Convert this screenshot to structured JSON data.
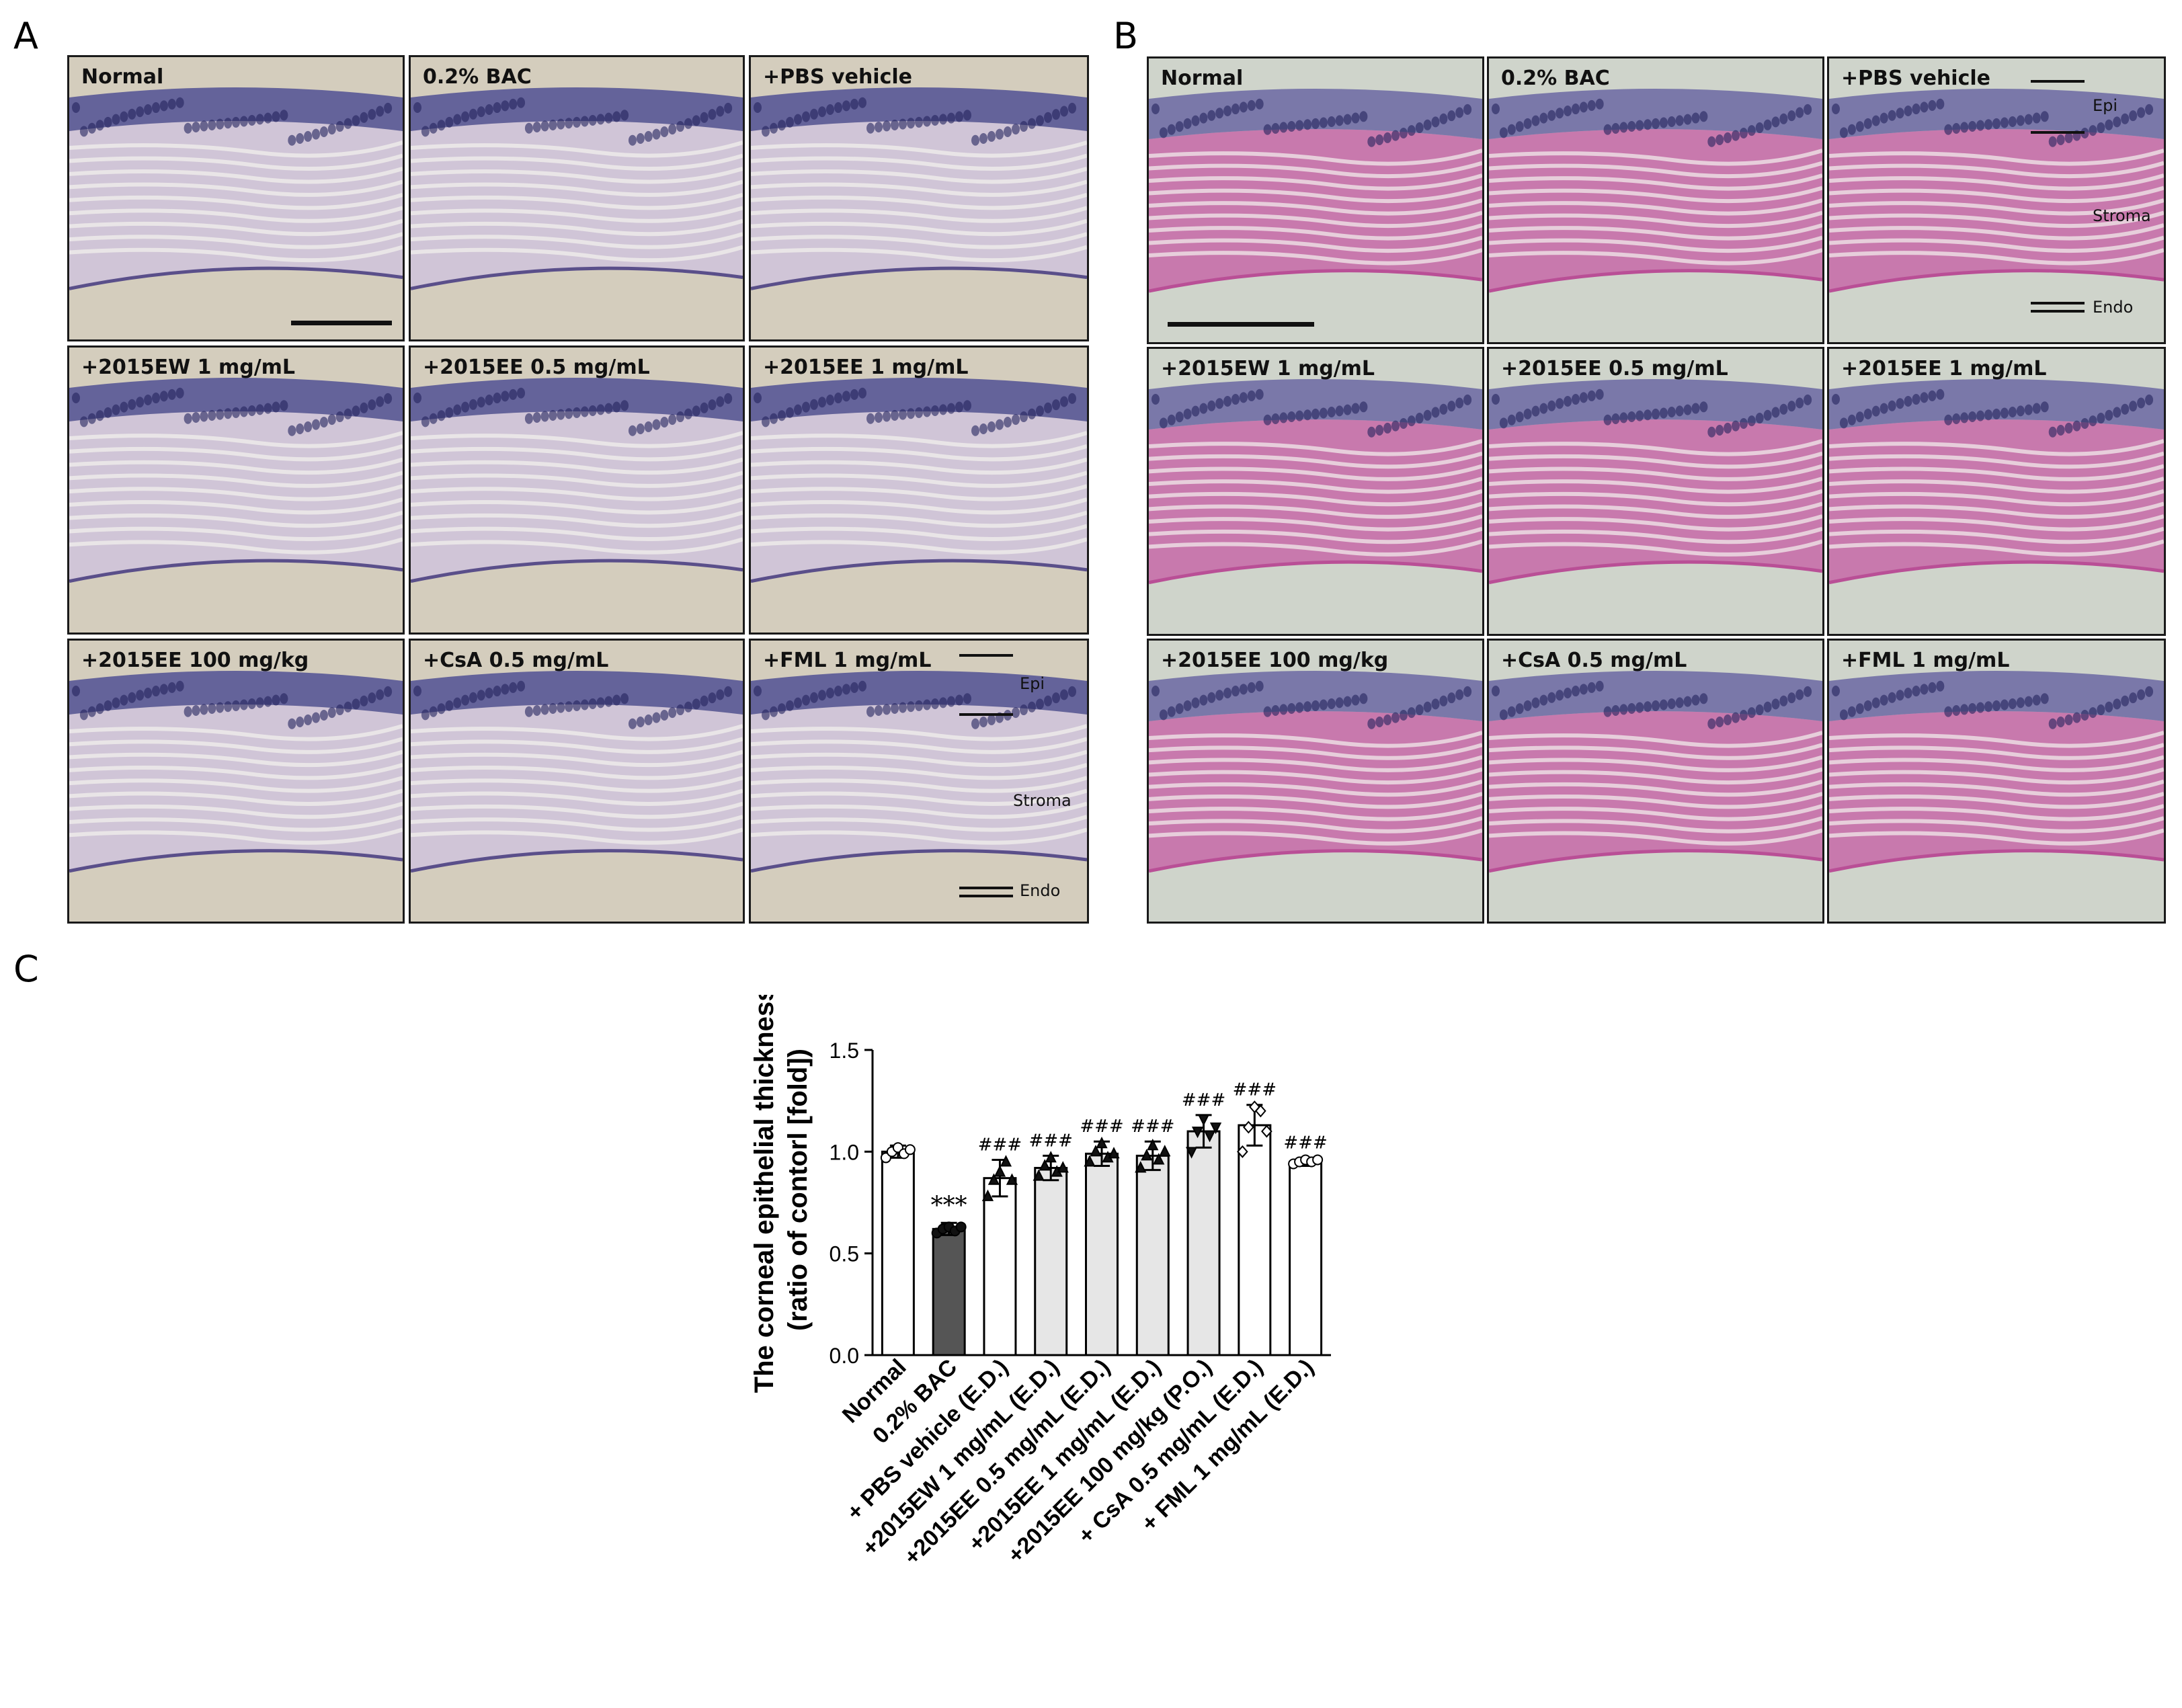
{
  "panels": {
    "a_letter": "A",
    "b_letter": "B",
    "c_letter": "C"
  },
  "panel_a": {
    "labels": [
      "Normal",
      "0.2% BAC",
      "+PBS vehicle",
      "+2015EW 1 mg/mL",
      "+2015EE 0.5 mg/mL",
      "+2015EE 1 mg/mL",
      "+2015EE 100 mg/kg",
      "+CsA 0.5 mg/mL",
      "+FML 1 mg/mL"
    ],
    "annotations": {
      "epi": "Epi",
      "stroma": "Stroma",
      "endo": "Endo"
    },
    "colors": {
      "bg": "#d4cdbd",
      "epi": "#3f3f8f",
      "stroma": "#cfc3dc",
      "line": "#5a4f8a"
    }
  },
  "panel_b": {
    "labels": [
      "Normal",
      "0.2% BAC",
      "+PBS vehicle",
      "+2015EW 1 mg/mL",
      "+2015EE 0.5 mg/mL",
      "+2015EE 1 mg/mL",
      "+2015EE 100 mg/kg",
      "+CsA 0.5 mg/mL",
      "+FML 1 mg/mL"
    ],
    "annotations": {
      "epi": "Epi",
      "stroma": "Stroma",
      "endo": "Endo"
    },
    "colors": {
      "bg": "#cfd4cb",
      "epi": "#5d5a9e",
      "stroma": "#c768a8",
      "line": "#b94f96"
    }
  },
  "chart_data": {
    "type": "bar",
    "ylabel_line1": "The corneal epithelial thickness",
    "ylabel_line2": "(ratio of contorl  [fold])",
    "ylim": [
      0.0,
      1.5
    ],
    "yticks": [
      "0.0",
      "0.5",
      "1.0",
      "1.5"
    ],
    "ytick_values": [
      0.0,
      0.5,
      1.0,
      1.5
    ],
    "categories": [
      "Normal",
      "0.2% BAC",
      "+ PBS vehicle (E.D.)",
      "+2015EW 1 mg/mL (E.D.)",
      "+2015EE 0.5 mg/mL (E.D.)",
      "+2015EE 1 mg/mL (E.D.)",
      "+2015EE 100 mg/kg (P.O.)",
      "+ CsA 0.5 mg/mL (E.D.)",
      "+ FML 1 mg/mL (E.D.)"
    ],
    "values": [
      1.0,
      0.62,
      0.87,
      0.92,
      0.99,
      0.98,
      1.1,
      1.13,
      0.95
    ],
    "errors": [
      0.03,
      0.03,
      0.09,
      0.06,
      0.06,
      0.07,
      0.08,
      0.1,
      0.02
    ],
    "significance": [
      "",
      "***",
      "###",
      "###",
      "###",
      "###",
      "###",
      "###",
      "###"
    ],
    "fills": [
      "#ffffff",
      "#555555",
      "#ffffff",
      "#e6e6e6",
      "#e6e6e6",
      "#e6e6e6",
      "#e6e6e6",
      "#ffffff",
      "#ffffff"
    ],
    "markers": [
      "circle-open",
      "circle-filled",
      "triangle-filled",
      "triangle-filled",
      "triangle-filled",
      "triangle-filled",
      "triangle-down-filled",
      "diamond-open",
      "circle-open"
    ],
    "points": [
      [
        0.97,
        1.0,
        1.02,
        0.99,
        1.01
      ],
      [
        0.6,
        0.62,
        0.63,
        0.61,
        0.63
      ],
      [
        0.78,
        0.86,
        0.9,
        0.95,
        0.86
      ],
      [
        0.88,
        0.93,
        0.97,
        0.9,
        0.92
      ],
      [
        0.95,
        1.0,
        1.04,
        0.97,
        0.99
      ],
      [
        0.92,
        0.98,
        1.03,
        0.96,
        1.0
      ],
      [
        1.0,
        1.1,
        1.16,
        1.08,
        1.12
      ],
      [
        1.0,
        1.12,
        1.22,
        1.2,
        1.1
      ],
      [
        0.94,
        0.95,
        0.96,
        0.95,
        0.96
      ]
    ]
  }
}
